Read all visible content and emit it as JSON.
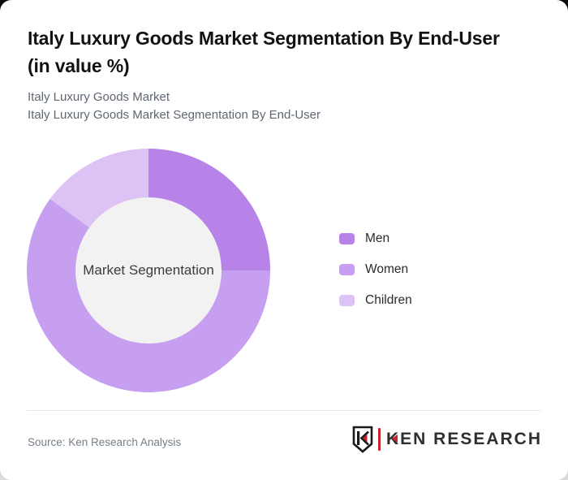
{
  "header": {
    "title": "Italy Luxury Goods Market Segmentation By End-User (in value %)",
    "title_line1": "Italy Luxury Goods Market Segmentation By End-User",
    "title_line2": "(in value %)",
    "subtitle_line1": "Italy Luxury Goods Market",
    "subtitle_line2": "Italy Luxury Goods Market Segmentation By End-User"
  },
  "chart_data": {
    "type": "pie",
    "subtype": "donut",
    "title": "Italy Luxury Goods Market Segmentation By End-User (in value %)",
    "center_label": "Market Segmentation",
    "categories": [
      "Men",
      "Women",
      "Children"
    ],
    "values": [
      25,
      60,
      15
    ],
    "unit": "percent",
    "colors": [
      "#b783e8",
      "#c79ff0",
      "#ddc2f5"
    ],
    "hole_color": "#f2f2f2",
    "inner_radius_ratio": 0.6,
    "start_angle_deg": 0,
    "direction": "clockwise",
    "legend_position": "right",
    "legend": [
      {
        "label": "Men",
        "color": "#b783e8"
      },
      {
        "label": "Women",
        "color": "#c79ff0"
      },
      {
        "label": "Children",
        "color": "#ddc2f5"
      }
    ]
  },
  "footer": {
    "source_text": "Source: Ken Research Analysis",
    "logo": {
      "monogram_letter": "K",
      "text_k": "K",
      "text_rest": "EN RESEARCH",
      "brand_red": "#c8232c",
      "ink": "#1a1a1a"
    }
  }
}
